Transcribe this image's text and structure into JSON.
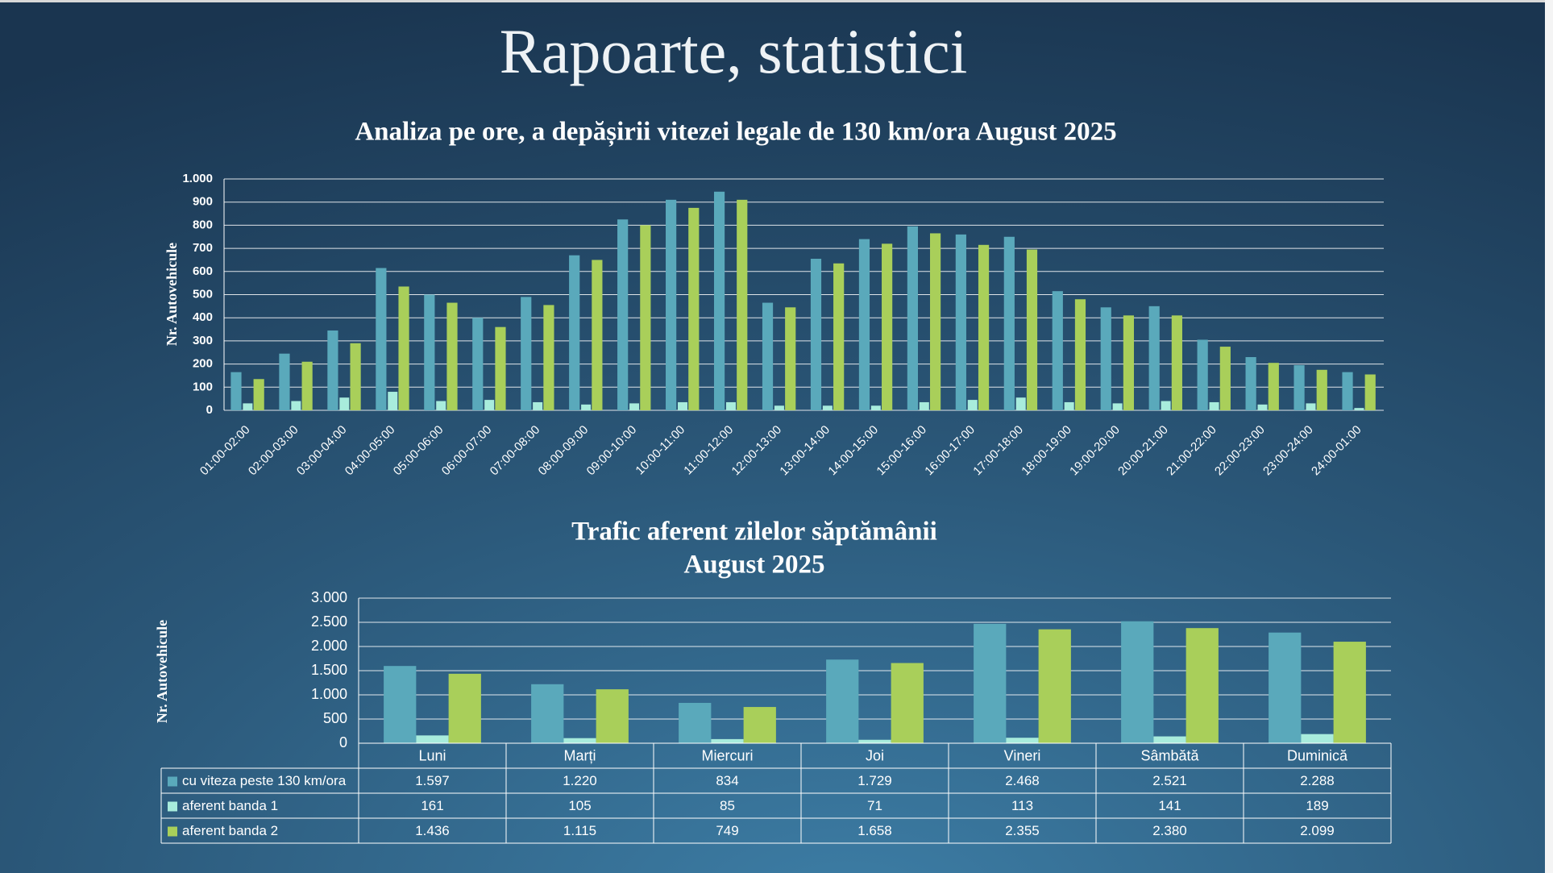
{
  "page_title": "Rapoarte, statistici",
  "chart_data": [
    {
      "type": "bar",
      "title": "Analiza pe ore, a depășirii vitezei legale de 130 km/ora August 2025",
      "y_label": "Nr. Autovehicule",
      "categories": [
        "01:00-02:00",
        "02:00-03:00",
        "03:00-04:00",
        "04:00-05:00",
        "05:00-06:00",
        "06:00-07:00",
        "07:00-08:00",
        "08:00-09:00",
        "09:00-10:00",
        "10:00-11:00",
        "11:00-12:00",
        "12:00-13:00",
        "13:00-14:00",
        "14:00-15:00",
        "15:00-16:00",
        "16:00-17:00",
        "17:00-18:00",
        "18:00-19:00",
        "19:00-20:00",
        "20:00-21:00",
        "21:00-22:00",
        "22:00-23:00",
        "23:00-24:00",
        "24:00-01:00"
      ],
      "series": [
        {
          "color": "#5aa9bb",
          "values": [
            165,
            245,
            345,
            615,
            500,
            400,
            490,
            670,
            825,
            910,
            945,
            465,
            655,
            740,
            795,
            760,
            750,
            515,
            445,
            450,
            305,
            230,
            195,
            165
          ]
        },
        {
          "color": "#a8ecdc",
          "values": [
            30,
            40,
            55,
            80,
            40,
            45,
            35,
            25,
            30,
            35,
            35,
            20,
            20,
            20,
            35,
            45,
            55,
            35,
            30,
            40,
            35,
            25,
            30,
            10
          ]
        },
        {
          "color": "#a9cf5a",
          "values": [
            135,
            210,
            290,
            535,
            465,
            360,
            455,
            650,
            800,
            875,
            910,
            445,
            635,
            720,
            765,
            715,
            695,
            480,
            410,
            410,
            275,
            205,
            175,
            155
          ]
        }
      ],
      "ylim": [
        0,
        1000
      ],
      "yticks": [
        0,
        100,
        200,
        300,
        400,
        500,
        600,
        700,
        800,
        900,
        {
          "value": 1000,
          "label": "1.000"
        }
      ],
      "grid": true
    },
    {
      "type": "bar",
      "title": [
        "Trafic aferent zilelor săptămânii",
        "August 2025"
      ],
      "y_label": "Nr. Autovehicule",
      "categories": [
        "Luni",
        "Marți",
        "Miercuri",
        "Joi",
        "Vineri",
        "Sâmbătă",
        "Duminică"
      ],
      "series": [
        {
          "name": "cu viteza peste 130 km/ora",
          "color": "#5aa9bb",
          "values": [
            1597,
            1220,
            834,
            1729,
            2468,
            2521,
            2288
          ],
          "value_labels": [
            "1.597",
            "1.220",
            "834",
            "1.729",
            "2.468",
            "2.521",
            "2.288"
          ]
        },
        {
          "name": "aferent banda 1",
          "color": "#a8ecdc",
          "values": [
            161,
            105,
            85,
            71,
            113,
            141,
            189
          ],
          "value_labels": [
            "161",
            "105",
            "85",
            "71",
            "113",
            "141",
            "189"
          ]
        },
        {
          "name": "aferent banda 2",
          "color": "#a9cf5a",
          "values": [
            1436,
            1115,
            749,
            1658,
            2355,
            2380,
            2099
          ],
          "value_labels": [
            "1.436",
            "1.115",
            "749",
            "1.658",
            "2.355",
            "2.380",
            "2.099"
          ]
        }
      ],
      "ylim": [
        0,
        3000
      ],
      "yticks": [
        0,
        500,
        {
          "value": 1000,
          "label": "1.000"
        },
        {
          "value": 1500,
          "label": "1.500"
        },
        {
          "value": 2000,
          "label": "2.000"
        },
        {
          "value": 2500,
          "label": "2.500"
        },
        {
          "value": 3000,
          "label": "3.000"
        }
      ],
      "grid": true,
      "data_table": true
    }
  ]
}
